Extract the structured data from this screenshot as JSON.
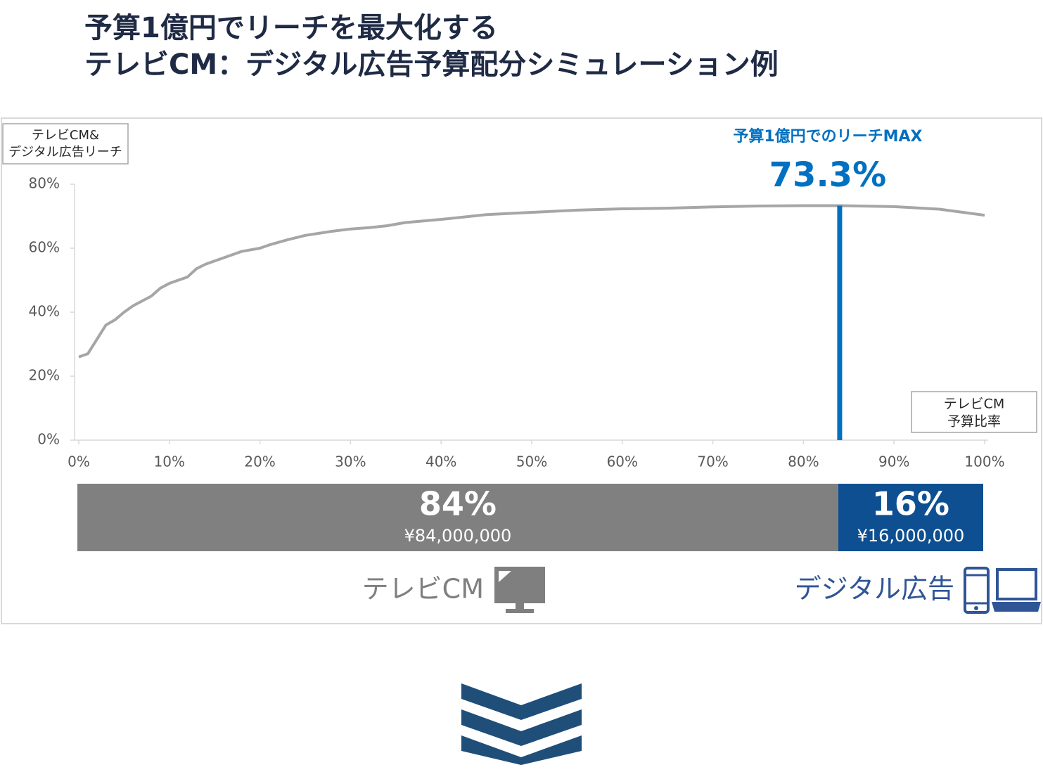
{
  "chart_data": [
    {
      "type": "line",
      "title": [
        "予算1億円でリーチを最大化する",
        "テレビCM：デジタル広告予算配分シミュレーション例"
      ],
      "ylabel": [
        "テレビCM&",
        "デジタル広告リーチ"
      ],
      "xlabel": [
        "テレビCM",
        "予算比率"
      ],
      "x": [
        0,
        1,
        3,
        4,
        5,
        6,
        8,
        9,
        10,
        12,
        13,
        14,
        16,
        18,
        20,
        21,
        23,
        25,
        28,
        30,
        32,
        34,
        36,
        40,
        45,
        50,
        55,
        60,
        65,
        70,
        75,
        80,
        84,
        90,
        95,
        100
      ],
      "series": [
        {
          "color": "#a6a6a6",
          "values": [
            26,
            27,
            36,
            37.6,
            40,
            42,
            45,
            47.5,
            49,
            51,
            53.6,
            55,
            57,
            59,
            60,
            61,
            62.6,
            64,
            65.3,
            66,
            66.4,
            67,
            68,
            69,
            70.5,
            71.2,
            71.9,
            72.3,
            72.5,
            72.9,
            73.2,
            73.3,
            73.3,
            73,
            72.2,
            70.3
          ]
        }
      ],
      "xlim": [
        0,
        100
      ],
      "xticks": [
        {
          "value": 0,
          "label": "0%"
        },
        {
          "value": 10,
          "label": "10%"
        },
        {
          "value": 20,
          "label": "20%"
        },
        {
          "value": 30,
          "label": "30%"
        },
        {
          "value": 40,
          "label": "40%"
        },
        {
          "value": 50,
          "label": "50%"
        },
        {
          "value": 60,
          "label": "60%"
        },
        {
          "value": 70,
          "label": "70%"
        },
        {
          "value": 80,
          "label": "80%"
        },
        {
          "value": 90,
          "label": "90%"
        },
        {
          "value": 100,
          "label": "100%"
        }
      ],
      "ylim": [
        0,
        80
      ],
      "yticks": [
        {
          "value": 0,
          "label": "0%"
        },
        {
          "value": 20,
          "label": "20%"
        },
        {
          "value": 40,
          "label": "40%"
        },
        {
          "value": 60,
          "label": "60%"
        },
        {
          "value": 80,
          "label": "80%"
        }
      ],
      "annotation": {
        "text": "予算1億円でのリーチMAX",
        "x": 84,
        "value": 73.3,
        "label": "73.3%",
        "color": "#0070c0"
      }
    },
    {
      "type": "stacked_bar",
      "xlim": [
        0,
        100
      ],
      "series": [
        {
          "name": "テレビCM",
          "color": "#808080",
          "text_color": "#7f7f7f",
          "values": [
            84
          ],
          "value_labels": [
            "84%"
          ],
          "amounts": [
            84000000
          ],
          "amount_labels": [
            "¥84,000,000"
          ]
        },
        {
          "name": "デジタル広告",
          "color": "#0e4f91",
          "text_color": "#2f5597",
          "values": [
            16
          ],
          "value_labels": [
            "16%"
          ],
          "amounts": [
            16000000
          ],
          "amount_labels": [
            "¥16,000,000"
          ]
        }
      ]
    }
  ]
}
